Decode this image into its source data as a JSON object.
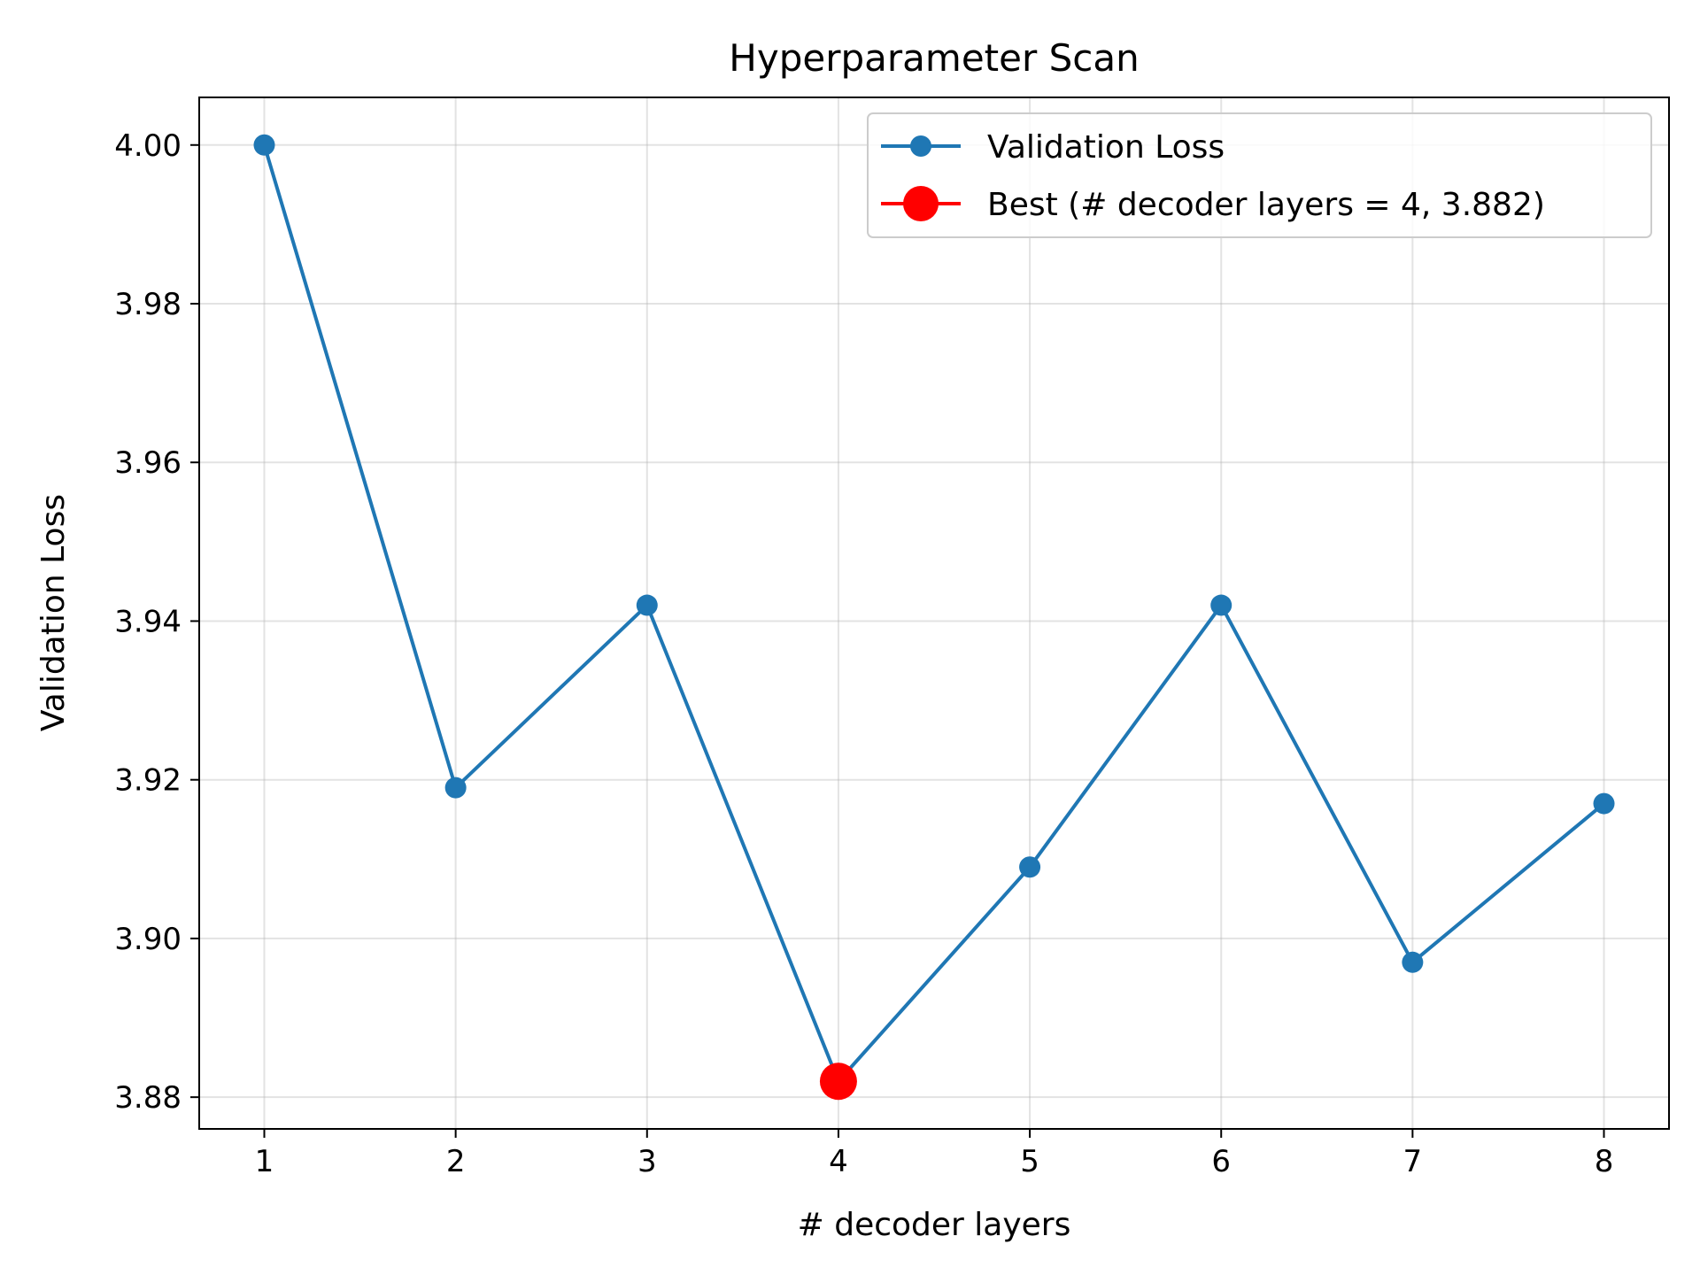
{
  "chart_data": {
    "type": "line",
    "title": "Hyperparameter Scan",
    "xlabel": "# decoder layers",
    "ylabel": "Validation Loss",
    "x": [
      1,
      2,
      3,
      4,
      5,
      6,
      7,
      8
    ],
    "series": [
      {
        "name": "Validation Loss",
        "values": [
          4.0,
          3.919,
          3.942,
          3.882,
          3.909,
          3.942,
          3.897,
          3.917
        ],
        "color": "#1f77b4"
      }
    ],
    "best": {
      "name": "Best (# decoder layers = 4, 3.882)",
      "x": 4,
      "y": 3.882,
      "color": "#ff0000"
    },
    "xlim": [
      0.66,
      8.34
    ],
    "ylim": [
      3.876,
      4.006
    ],
    "xticks": [
      "1",
      "2",
      "3",
      "4",
      "5",
      "6",
      "7",
      "8"
    ],
    "yticks": [
      "3.88",
      "3.90",
      "3.92",
      "3.94",
      "3.96",
      "3.98",
      "4.00"
    ],
    "grid": true,
    "legend_position": "top-right"
  }
}
